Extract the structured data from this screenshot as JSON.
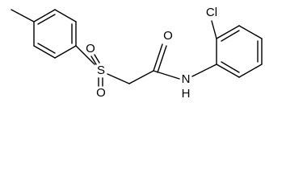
{
  "atoms": [
    "Cl",
    "O",
    "S",
    "O",
    "O",
    "N",
    "H"
  ]
}
